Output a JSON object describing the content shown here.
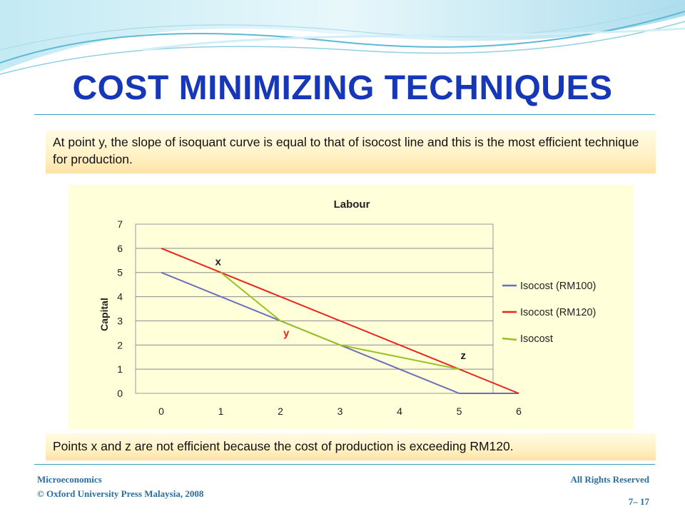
{
  "slide": {
    "title": "COST MINIMIZING TECHNIQUES",
    "note_top": "At point y, the slope of isoquant curve is equal to that of isocost line and this is the most efficient technique for production.",
    "note_bottom": "Points x and z are not efficient because the cost of production is exceeding RM120.",
    "footer_course": "Microeconomics",
    "footer_copyright": "© Oxford University Press Malaysia, 2008",
    "footer_rights": "All Rights Reserved",
    "footer_page": "7– 17"
  },
  "colors": {
    "title": "#1537b8",
    "isocost100": "#6a6db8",
    "isocost120": "#e8251b",
    "isoquant": "#9ac123",
    "point_label_y": "#e8251b",
    "chart_bg": "#ffffd9"
  },
  "chart_data": {
    "type": "line",
    "title": "Labour",
    "xlabel": "",
    "ylabel": "Capital",
    "xlim": [
      0,
      6
    ],
    "ylim": [
      0,
      7
    ],
    "xticks": [
      "0",
      "1",
      "2",
      "3",
      "4",
      "5",
      "6"
    ],
    "yticks": [
      "0",
      "1",
      "2",
      "3",
      "4",
      "5",
      "6",
      "7"
    ],
    "grid": "horizontal",
    "legend": "right",
    "series": [
      {
        "name": "Isocost (RM100)",
        "color": "#6a6db8",
        "points": [
          [
            0,
            5
          ],
          [
            5,
            0
          ],
          [
            6,
            0
          ]
        ]
      },
      {
        "name": "Isocost (RM120)",
        "color": "#e8251b",
        "points": [
          [
            0,
            6
          ],
          [
            6,
            0
          ]
        ]
      },
      {
        "name": "Isocost",
        "color": "#9ac123",
        "points": [
          [
            1,
            5
          ],
          [
            2,
            3
          ],
          [
            3,
            2
          ],
          [
            5,
            1
          ]
        ]
      }
    ],
    "annotations": [
      {
        "text": "x",
        "x": 1,
        "y": 5,
        "color": "#222222"
      },
      {
        "text": "y",
        "x": 2,
        "y": 3,
        "color": "#e8251b"
      },
      {
        "text": "z",
        "x": 5,
        "y": 1,
        "color": "#222222"
      }
    ]
  }
}
